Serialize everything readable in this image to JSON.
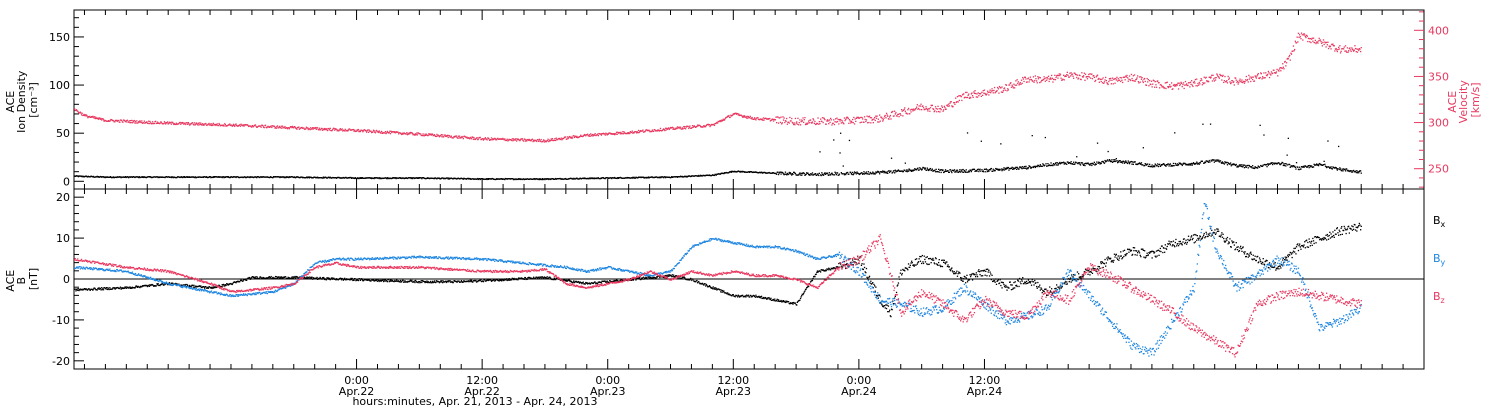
{
  "colors": {
    "black": "#000000",
    "red": "#e8385f",
    "blue": "#1f86e0"
  },
  "chart_data": [
    {
      "type": "scatter",
      "panel": "top",
      "ylabel_lines": [
        "ACE",
        "Ion Density",
        "[cm⁻³]"
      ],
      "y2label_lines": [
        "ACE",
        "Velocity",
        "[km/s]"
      ],
      "ylim": [
        -8,
        178
      ],
      "y_ticks": [
        0,
        50,
        100,
        150
      ],
      "y2lim": [
        228,
        422
      ],
      "y2_ticks": [
        250,
        300,
        350,
        400
      ],
      "series": [
        {
          "name": "Ion Density",
          "axis": "left",
          "color": "#000000",
          "points": [
            [
              -27,
              6
            ],
            [
              -24,
              5
            ],
            [
              -18,
              5
            ],
            [
              -12,
              5
            ],
            [
              -6,
              5
            ],
            [
              0,
              4
            ],
            [
              6,
              4
            ],
            [
              12,
              3
            ],
            [
              18,
              3
            ],
            [
              24,
              4
            ],
            [
              30,
              5
            ],
            [
              34,
              7
            ],
            [
              36,
              11
            ],
            [
              40,
              9
            ],
            [
              44,
              8
            ],
            [
              48,
              9
            ],
            [
              52,
              11
            ],
            [
              54,
              14
            ],
            [
              56,
              11
            ],
            [
              60,
              12
            ],
            [
              64,
              15
            ],
            [
              66,
              18
            ],
            [
              68,
              20
            ],
            [
              70,
              18
            ],
            [
              72,
              22
            ],
            [
              74,
              20
            ],
            [
              76,
              17
            ],
            [
              78,
              18
            ],
            [
              80,
              19
            ],
            [
              82,
              22
            ],
            [
              84,
              17
            ],
            [
              86,
              15
            ],
            [
              88,
              20
            ],
            [
              90,
              14
            ],
            [
              92,
              18
            ],
            [
              94,
              13
            ],
            [
              96,
              10
            ]
          ]
        },
        {
          "name": "Velocity",
          "axis": "right",
          "color": "#e8385f",
          "points": [
            [
              -27,
              315
            ],
            [
              -26,
              308
            ],
            [
              -24,
              303
            ],
            [
              -18,
              300
            ],
            [
              -12,
              298
            ],
            [
              -6,
              295
            ],
            [
              0,
              292
            ],
            [
              6,
              288
            ],
            [
              12,
              283
            ],
            [
              18,
              281
            ],
            [
              22,
              287
            ],
            [
              26,
              290
            ],
            [
              30,
              294
            ],
            [
              34,
              298
            ],
            [
              36,
              310
            ],
            [
              38,
              305
            ],
            [
              42,
              302
            ],
            [
              46,
              302
            ],
            [
              50,
              305
            ],
            [
              54,
              318
            ],
            [
              56,
              315
            ],
            [
              58,
              330
            ],
            [
              60,
              333
            ],
            [
              62,
              338
            ],
            [
              64,
              348
            ],
            [
              66,
              347
            ],
            [
              68,
              352
            ],
            [
              70,
              350
            ],
            [
              72,
              345
            ],
            [
              74,
              350
            ],
            [
              76,
              343
            ],
            [
              78,
              340
            ],
            [
              80,
              343
            ],
            [
              82,
              350
            ],
            [
              84,
              345
            ],
            [
              86,
              350
            ],
            [
              88,
              355
            ],
            [
              89,
              368
            ],
            [
              90,
              395
            ],
            [
              92,
              388
            ],
            [
              94,
              380
            ],
            [
              96,
              380
            ]
          ]
        }
      ]
    },
    {
      "type": "scatter",
      "panel": "bottom",
      "ylabel_lines": [
        "ACE",
        "B",
        "[nT]"
      ],
      "ylim": [
        -22,
        22
      ],
      "y_ticks": [
        -20,
        -10,
        0,
        10,
        20
      ],
      "series": [
        {
          "name": "Bₓ",
          "color": "#000000",
          "points": [
            [
              -27,
              -2.5
            ],
            [
              -22,
              -2
            ],
            [
              -18,
              -1
            ],
            [
              -14,
              -2
            ],
            [
              -12,
              -1
            ],
            [
              -10,
              0.5
            ],
            [
              -6,
              0.5
            ],
            [
              0,
              0
            ],
            [
              6,
              -0.5
            ],
            [
              10,
              -0.5
            ],
            [
              14,
              0
            ],
            [
              18,
              0.5
            ],
            [
              22,
              -1
            ],
            [
              26,
              0
            ],
            [
              30,
              1
            ],
            [
              32,
              0
            ],
            [
              34,
              -2
            ],
            [
              36,
              -4
            ],
            [
              38,
              -4
            ],
            [
              40,
              -5
            ],
            [
              42,
              -6
            ],
            [
              44,
              2
            ],
            [
              46,
              3
            ],
            [
              48,
              5
            ],
            [
              50,
              -5
            ],
            [
              51,
              -8
            ],
            [
              52,
              2
            ],
            [
              54,
              5
            ],
            [
              56,
              4
            ],
            [
              58,
              0
            ],
            [
              60,
              2
            ],
            [
              62,
              -2
            ],
            [
              64,
              0
            ],
            [
              66,
              -3
            ],
            [
              68,
              0
            ],
            [
              70,
              2
            ],
            [
              72,
              5
            ],
            [
              74,
              7
            ],
            [
              76,
              6
            ],
            [
              78,
              9
            ],
            [
              80,
              10
            ],
            [
              82,
              12
            ],
            [
              84,
              8
            ],
            [
              86,
              5
            ],
            [
              88,
              3
            ],
            [
              90,
              8
            ],
            [
              92,
              10
            ],
            [
              94,
              12
            ],
            [
              96,
              13
            ]
          ]
        },
        {
          "name": "B_y",
          "color": "#1f86e0",
          "points": [
            [
              -27,
              3
            ],
            [
              -22,
              2
            ],
            [
              -18,
              -1
            ],
            [
              -14,
              -3
            ],
            [
              -12,
              -4
            ],
            [
              -8,
              -3
            ],
            [
              -6,
              -1
            ],
            [
              -4,
              4
            ],
            [
              -2,
              5
            ],
            [
              0,
              5
            ],
            [
              6,
              5.5
            ],
            [
              12,
              5
            ],
            [
              16,
              4
            ],
            [
              20,
              3
            ],
            [
              22,
              2
            ],
            [
              24,
              3
            ],
            [
              26,
              2
            ],
            [
              28,
              1
            ],
            [
              30,
              2
            ],
            [
              32,
              8
            ],
            [
              34,
              10
            ],
            [
              36,
              9
            ],
            [
              38,
              8
            ],
            [
              40,
              8
            ],
            [
              42,
              7
            ],
            [
              44,
              5
            ],
            [
              46,
              6
            ],
            [
              48,
              2
            ],
            [
              50,
              -5
            ],
            [
              52,
              -6
            ],
            [
              54,
              -8
            ],
            [
              56,
              -7
            ],
            [
              58,
              -2
            ],
            [
              60,
              -6
            ],
            [
              62,
              -10
            ],
            [
              64,
              -9
            ],
            [
              66,
              -7
            ],
            [
              68,
              2
            ],
            [
              70,
              -4
            ],
            [
              72,
              -10
            ],
            [
              74,
              -16
            ],
            [
              76,
              -18
            ],
            [
              78,
              -10
            ],
            [
              80,
              -2
            ],
            [
              81,
              19
            ],
            [
              82,
              8
            ],
            [
              84,
              -2
            ],
            [
              86,
              1
            ],
            [
              88,
              5
            ],
            [
              90,
              2
            ],
            [
              92,
              -12
            ],
            [
              94,
              -10
            ],
            [
              96,
              -7
            ]
          ]
        },
        {
          "name": "B_z",
          "color": "#e8385f",
          "points": [
            [
              -27,
              5
            ],
            [
              -22,
              3
            ],
            [
              -18,
              2
            ],
            [
              -14,
              -1
            ],
            [
              -12,
              -3
            ],
            [
              -8,
              -2
            ],
            [
              -6,
              -1
            ],
            [
              -4,
              3
            ],
            [
              -2,
              4
            ],
            [
              0,
              3
            ],
            [
              6,
              3
            ],
            [
              12,
              2
            ],
            [
              16,
              2
            ],
            [
              18,
              2.5
            ],
            [
              20,
              -1
            ],
            [
              22,
              -2
            ],
            [
              24,
              -1
            ],
            [
              26,
              0
            ],
            [
              28,
              2
            ],
            [
              30,
              0
            ],
            [
              32,
              2
            ],
            [
              34,
              1
            ],
            [
              36,
              2
            ],
            [
              38,
              1
            ],
            [
              40,
              1
            ],
            [
              42,
              0
            ],
            [
              44,
              -2
            ],
            [
              46,
              3
            ],
            [
              48,
              5
            ],
            [
              50,
              10
            ],
            [
              52,
              -8
            ],
            [
              54,
              -3
            ],
            [
              56,
              -6
            ],
            [
              58,
              -10
            ],
            [
              60,
              -5
            ],
            [
              62,
              -8
            ],
            [
              64,
              -9
            ],
            [
              66,
              -3
            ],
            [
              68,
              -5
            ],
            [
              70,
              3
            ],
            [
              72,
              1
            ],
            [
              74,
              -2
            ],
            [
              76,
              -5
            ],
            [
              78,
              -8
            ],
            [
              80,
              -12
            ],
            [
              82,
              -15
            ],
            [
              84,
              -18
            ],
            [
              86,
              -6
            ],
            [
              88,
              -4
            ],
            [
              90,
              -3
            ],
            [
              92,
              -4
            ],
            [
              94,
              -5
            ],
            [
              96,
              -6
            ]
          ]
        }
      ]
    }
  ],
  "x_axis": {
    "unit": "hours from Apr.22 0:00",
    "range": [
      -27,
      102
    ],
    "major_ticks": [
      {
        "x": 0,
        "time": "0:00",
        "date": "Apr.22"
      },
      {
        "x": 12,
        "time": "12:00",
        "date": "Apr.22"
      },
      {
        "x": 24,
        "time": "0:00",
        "date": "Apr.23"
      },
      {
        "x": 36,
        "time": "12:00",
        "date": "Apr.23"
      },
      {
        "x": 48,
        "time": "0:00",
        "date": "Apr.24"
      },
      {
        "x": 60,
        "time": "12:00",
        "date": "Apr.24"
      }
    ],
    "minor_step_hours": 2,
    "title": "hours:minutes, Apr. 21, 2013 - Apr. 24, 2013"
  },
  "legend": [
    {
      "base": "B",
      "sub": "x",
      "color": "#000000"
    },
    {
      "base": "B",
      "sub": "y",
      "color": "#1f86e0"
    },
    {
      "base": "B",
      "sub": "z",
      "color": "#e8385f"
    }
  ]
}
